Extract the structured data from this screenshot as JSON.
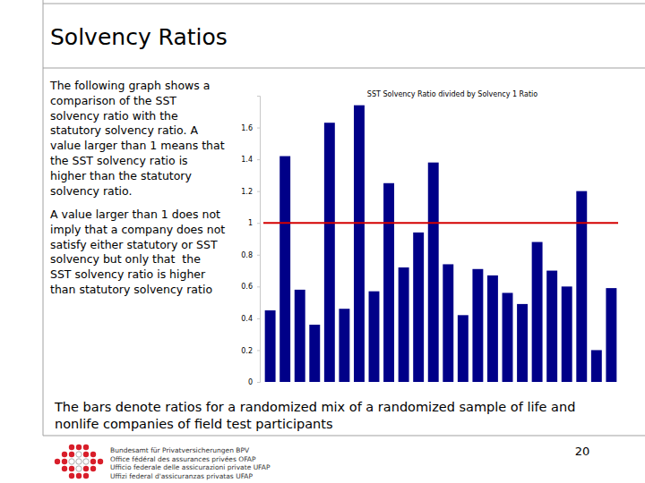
{
  "chart_data": {
    "type": "bar",
    "title": "SST Solvency Ratio divided by Solvency 1 Ratio",
    "categories": [
      null,
      null,
      null,
      null,
      null,
      null,
      null,
      null,
      null,
      null,
      null,
      null,
      null,
      null,
      null,
      null,
      null,
      null,
      null,
      null,
      null,
      null,
      null,
      null
    ],
    "values": [
      0.45,
      1.42,
      0.58,
      0.36,
      1.63,
      0.46,
      1.74,
      0.57,
      1.25,
      0.72,
      0.94,
      1.38,
      0.74,
      0.42,
      0.71,
      0.67,
      0.56,
      0.49,
      0.88,
      0.7,
      0.6,
      1.2,
      0.2,
      0.59
    ],
    "color": "#000088",
    "reference_line": 1,
    "ylim": [
      0,
      1.8
    ],
    "yticks": [
      0,
      0.2,
      0.4,
      0.6,
      0.8,
      1,
      1.2,
      1.4,
      1.6
    ],
    "tick_labels": "y",
    "grid": false
  },
  "slide": {
    "title": "Solvency Ratios",
    "paragraphs": [
      [
        "The following graph shows a",
        "comparison of the SST",
        "solvency ratio with the",
        "statutory solvency ratio. A",
        "value larger than 1 means that",
        "the SST solvency ratio is",
        "higher than the statutory",
        "solvency ratio."
      ],
      [
        "A value larger than 1 does not",
        "imply that a company does not",
        "satisfy either statutory or SST",
        "solvency but only that  the",
        "SST solvency ratio is higher",
        "than statutory solvency ratio"
      ]
    ],
    "caption": [
      "The bars denote ratios for a randomized mix of a randomized sample of life and",
      "nonlife companies of field test participants"
    ],
    "footer": [
      "Bundesamt für Privatversicherungen BPV",
      "Office fédéral des assurances privées OFAP",
      "Ufficio federale delle assicurazioni private UFAP",
      "Uffizi federal d'assicuranzas privatas UFAP"
    ],
    "page_number": "20"
  }
}
